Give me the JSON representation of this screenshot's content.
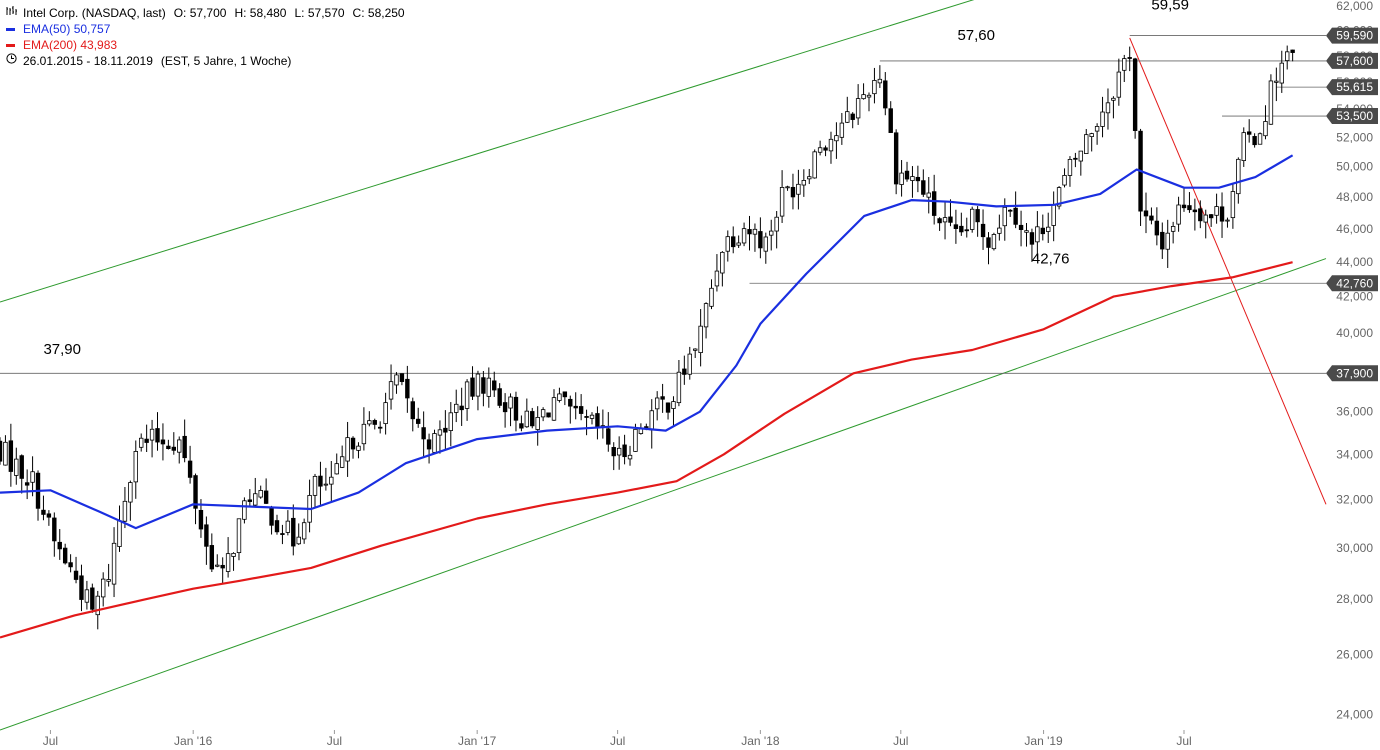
{
  "legend": {
    "title": "Intel Corp. (NASDAQ, last)",
    "ohlc_labels": [
      "O:",
      "H:",
      "L:",
      "C:"
    ],
    "ohlc_values": [
      "57,700",
      "58,480",
      "57,570",
      "58,250"
    ],
    "ema50_label": "EMA(50)",
    "ema50_value": "50,757",
    "ema200_label": "EMA(200)",
    "ema200_value": "43,983",
    "range": "26.01.2015 - 18.11.2019",
    "range_note": "(EST, 5 Jahre, 1 Woche)",
    "icons": {
      "chart": "chart-icon",
      "clock": "clock-icon"
    },
    "colors": {
      "ema50": "#1a2fe0",
      "ema200": "#e31a1a"
    }
  },
  "annotations": {
    "labels": [
      "37,90",
      "57,60",
      "59,59",
      "42,76"
    ],
    "price_boxes": [
      "59,590",
      "57,600",
      "55,615",
      "53,500",
      "42,760",
      "37,900"
    ]
  },
  "chart_data": {
    "type": "candlestick",
    "title": "Intel Corp. (NASDAQ, last)",
    "interval": "1 Woche",
    "ylim": [
      23500,
      62500
    ],
    "xlim": [
      "2015-04-27",
      "2019-12-31"
    ],
    "y_ticks": [
      "24,000",
      "26,000",
      "28,000",
      "30,000",
      "32,000",
      "34,000",
      "36,000",
      "38,000",
      "40,000",
      "42,000",
      "44,000",
      "46,000",
      "48,000",
      "50,000",
      "52,000",
      "54,000",
      "56,000",
      "58,000",
      "60,000",
      "62,000"
    ],
    "x_ticks": [
      {
        "label": "Jul",
        "date": "2015-07-01"
      },
      {
        "label": "Jan '16",
        "date": "2016-01-01"
      },
      {
        "label": "Jul",
        "date": "2016-07-01"
      },
      {
        "label": "Jan '17",
        "date": "2017-01-01"
      },
      {
        "label": "Jul",
        "date": "2017-07-01"
      },
      {
        "label": "Jan '18",
        "date": "2018-01-01"
      },
      {
        "label": "Jul",
        "date": "2018-07-01"
      },
      {
        "label": "Jan '19",
        "date": "2019-01-01"
      },
      {
        "label": "Jul",
        "date": "2019-07-01"
      }
    ],
    "closes": [
      {
        "date": "2015-04-27",
        "v": 34.2
      },
      {
        "date": "2015-06-08",
        "v": 32.8
      },
      {
        "date": "2015-07-06",
        "v": 30.2
      },
      {
        "date": "2015-08-03",
        "v": 28.8
      },
      {
        "date": "2015-08-24",
        "v": 27.5
      },
      {
        "date": "2015-09-14",
        "v": 29.0
      },
      {
        "date": "2015-10-19",
        "v": 34.4
      },
      {
        "date": "2015-11-16",
        "v": 34.7
      },
      {
        "date": "2015-12-14",
        "v": 34.6
      },
      {
        "date": "2016-01-18",
        "v": 30.0
      },
      {
        "date": "2016-02-08",
        "v": 28.8
      },
      {
        "date": "2016-03-14",
        "v": 32.3
      },
      {
        "date": "2016-04-11",
        "v": 31.4
      },
      {
        "date": "2016-05-09",
        "v": 30.3
      },
      {
        "date": "2016-06-06",
        "v": 32.6
      },
      {
        "date": "2016-06-27",
        "v": 32.5
      },
      {
        "date": "2016-07-25",
        "v": 34.8
      },
      {
        "date": "2016-08-22",
        "v": 35.3
      },
      {
        "date": "2016-09-19",
        "v": 37.5
      },
      {
        "date": "2016-10-17",
        "v": 35.2
      },
      {
        "date": "2016-11-07",
        "v": 34.5
      },
      {
        "date": "2016-12-12",
        "v": 36.6
      },
      {
        "date": "2017-01-09",
        "v": 37.5
      },
      {
        "date": "2017-02-06",
        "v": 36.5
      },
      {
        "date": "2017-03-13",
        "v": 35.2
      },
      {
        "date": "2017-04-10",
        "v": 36.6
      },
      {
        "date": "2017-05-08",
        "v": 35.6
      },
      {
        "date": "2017-06-05",
        "v": 35.2
      },
      {
        "date": "2017-07-03",
        "v": 33.8
      },
      {
        "date": "2017-08-07",
        "v": 35.7
      },
      {
        "date": "2017-09-11",
        "v": 36.8
      },
      {
        "date": "2017-10-16",
        "v": 40.0
      },
      {
        "date": "2017-11-13",
        "v": 45.1
      },
      {
        "date": "2017-12-11",
        "v": 46.2
      },
      {
        "date": "2018-01-08",
        "v": 45.2
      },
      {
        "date": "2018-01-29",
        "v": 48.1
      },
      {
        "date": "2018-02-26",
        "v": 49.5
      },
      {
        "date": "2018-03-19",
        "v": 51.6
      },
      {
        "date": "2018-04-16",
        "v": 52.5
      },
      {
        "date": "2018-05-07",
        "v": 54.5
      },
      {
        "date": "2018-06-04",
        "v": 56.7
      },
      {
        "date": "2018-06-25",
        "v": 49.7
      },
      {
        "date": "2018-07-23",
        "v": 49.0
      },
      {
        "date": "2018-08-13",
        "v": 47.0
      },
      {
        "date": "2018-09-10",
        "v": 45.3
      },
      {
        "date": "2018-10-01",
        "v": 46.5
      },
      {
        "date": "2018-10-22",
        "v": 45.5
      },
      {
        "date": "2018-11-19",
        "v": 47.7
      },
      {
        "date": "2018-12-17",
        "v": 45.0
      },
      {
        "date": "2019-01-14",
        "v": 47.5
      },
      {
        "date": "2019-02-04",
        "v": 49.8
      },
      {
        "date": "2019-03-04",
        "v": 52.5
      },
      {
        "date": "2019-04-01",
        "v": 55.6
      },
      {
        "date": "2019-04-22",
        "v": 58.5
      },
      {
        "date": "2019-05-06",
        "v": 46.8
      },
      {
        "date": "2019-06-03",
        "v": 45.2
      },
      {
        "date": "2019-07-01",
        "v": 47.8
      },
      {
        "date": "2019-08-05",
        "v": 46.8
      },
      {
        "date": "2019-08-26",
        "v": 47.2
      },
      {
        "date": "2019-09-16",
        "v": 51.5
      },
      {
        "date": "2019-10-07",
        "v": 52.5
      },
      {
        "date": "2019-10-28",
        "v": 56.8
      },
      {
        "date": "2019-11-18",
        "v": 58.25
      }
    ],
    "series": [
      {
        "name": "EMA(50)",
        "color": "#1a2fe0",
        "points": [
          {
            "date": "2015-04-27",
            "v": 32.3
          },
          {
            "date": "2015-07-01",
            "v": 32.4
          },
          {
            "date": "2015-09-01",
            "v": 31.5
          },
          {
            "date": "2015-10-19",
            "v": 30.8
          },
          {
            "date": "2016-01-01",
            "v": 31.8
          },
          {
            "date": "2016-06-01",
            "v": 31.6
          },
          {
            "date": "2016-08-01",
            "v": 32.3
          },
          {
            "date": "2016-10-01",
            "v": 33.6
          },
          {
            "date": "2017-01-01",
            "v": 34.7
          },
          {
            "date": "2017-04-01",
            "v": 35.1
          },
          {
            "date": "2017-07-01",
            "v": 35.3
          },
          {
            "date": "2017-09-01",
            "v": 35.1
          },
          {
            "date": "2017-10-15",
            "v": 36.0
          },
          {
            "date": "2017-12-01",
            "v": 38.3
          },
          {
            "date": "2018-01-01",
            "v": 40.5
          },
          {
            "date": "2018-03-01",
            "v": 43.3
          },
          {
            "date": "2018-05-15",
            "v": 46.8
          },
          {
            "date": "2018-07-15",
            "v": 47.8
          },
          {
            "date": "2018-09-01",
            "v": 47.7
          },
          {
            "date": "2018-11-01",
            "v": 47.4
          },
          {
            "date": "2019-01-15",
            "v": 47.5
          },
          {
            "date": "2019-03-15",
            "v": 48.2
          },
          {
            "date": "2019-05-01",
            "v": 49.8
          },
          {
            "date": "2019-07-01",
            "v": 48.6
          },
          {
            "date": "2019-08-15",
            "v": 48.6
          },
          {
            "date": "2019-10-01",
            "v": 49.3
          },
          {
            "date": "2019-11-18",
            "v": 50.757
          }
        ]
      },
      {
        "name": "EMA(200)",
        "color": "#e31a1a",
        "points": [
          {
            "date": "2015-04-27",
            "v": 26.6
          },
          {
            "date": "2015-08-01",
            "v": 27.4
          },
          {
            "date": "2015-11-01",
            "v": 28.0
          },
          {
            "date": "2016-01-01",
            "v": 28.4
          },
          {
            "date": "2016-03-01",
            "v": 28.7
          },
          {
            "date": "2016-06-01",
            "v": 29.2
          },
          {
            "date": "2016-09-01",
            "v": 30.1
          },
          {
            "date": "2017-01-01",
            "v": 31.2
          },
          {
            "date": "2017-04-01",
            "v": 31.8
          },
          {
            "date": "2017-07-01",
            "v": 32.3
          },
          {
            "date": "2017-09-15",
            "v": 32.8
          },
          {
            "date": "2017-11-15",
            "v": 34.0
          },
          {
            "date": "2018-02-01",
            "v": 35.9
          },
          {
            "date": "2018-05-01",
            "v": 37.9
          },
          {
            "date": "2018-07-15",
            "v": 38.6
          },
          {
            "date": "2018-10-01",
            "v": 39.1
          },
          {
            "date": "2019-01-01",
            "v": 40.2
          },
          {
            "date": "2019-04-01",
            "v": 42.0
          },
          {
            "date": "2019-06-15",
            "v": 42.6
          },
          {
            "date": "2019-09-01",
            "v": 43.1
          },
          {
            "date": "2019-11-18",
            "v": 43.983
          }
        ]
      }
    ],
    "horizontal_levels": [
      59.59,
      57.6,
      55.615,
      53.5,
      42.76,
      37.9
    ],
    "trend_lines": [
      {
        "name": "upper-channel",
        "color": "#2e9a2e",
        "from": {
          "date": "2015-04-27",
          "v": 41.7
        },
        "to": {
          "date": "2019-12-31",
          "v": 72.4
        }
      },
      {
        "name": "lower-channel",
        "color": "#2e9a2e",
        "from": {
          "date": "2015-04-27",
          "v": 23.5
        },
        "to": {
          "date": "2019-12-31",
          "v": 44.2
        }
      },
      {
        "name": "downtrend",
        "color": "#e31a1a",
        "from": {
          "date": "2019-04-22",
          "v": 59.4
        },
        "to": {
          "date": "2019-12-31",
          "v": 31.8
        }
      }
    ],
    "zone": {
      "color": "#b9dcb9",
      "v_from": 52.7,
      "v_to": 54.0,
      "date_from": "2019-10-21"
    }
  }
}
